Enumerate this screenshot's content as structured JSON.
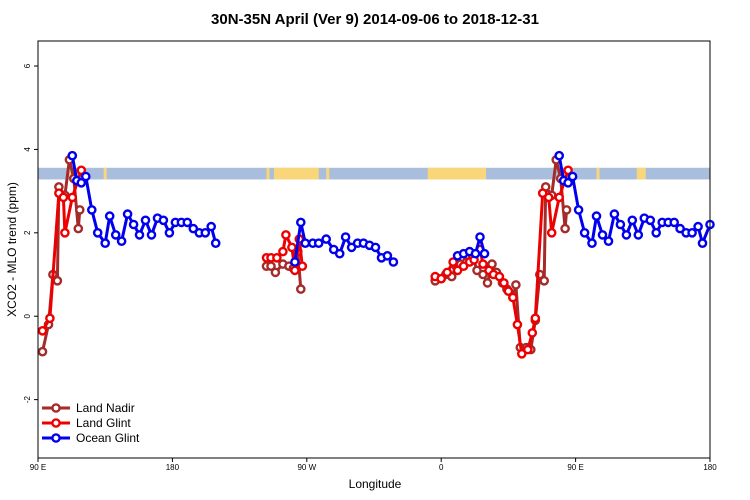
{
  "chart_data": {
    "type": "line",
    "title": "30N-35N April (Ver 9)   2014-09-06 to 2018-12-31",
    "xlabel": "Longitude",
    "ylabel": "XCO2 - MLO trend (ppm)",
    "xlim": [
      90,
      540
    ],
    "ylim": [
      -3.4,
      6.6
    ],
    "x_ticks": [
      {
        "value": 90,
        "label": "90 E"
      },
      {
        "value": 180,
        "label": "180"
      },
      {
        "value": 270,
        "label": "90 W"
      },
      {
        "value": 360,
        "label": "0"
      },
      {
        "value": 450,
        "label": "90 E"
      },
      {
        "value": 540,
        "label": "180"
      }
    ],
    "y_ticks": [
      {
        "value": -2,
        "label": "-2"
      },
      {
        "value": 0,
        "label": "0"
      },
      {
        "value": 2,
        "label": "2"
      },
      {
        "value": 4,
        "label": "4"
      },
      {
        "value": 6,
        "label": "6"
      }
    ],
    "band": {
      "y0": 3.28,
      "y1": 3.56,
      "ocean_color": "#a9bedc",
      "land_color": "#fad67a",
      "land_segments": [
        [
          111,
          113
        ],
        [
          134,
          136
        ],
        [
          243,
          245
        ],
        [
          248,
          278
        ],
        [
          283,
          285
        ],
        [
          351,
          390
        ],
        [
          464,
          466
        ],
        [
          491,
          497
        ]
      ]
    },
    "legend": {
      "position": "bottom-left",
      "entries": [
        "Land Nadir",
        "Land Glint",
        "Ocean Glint"
      ]
    },
    "series": [
      {
        "name": "Land Nadir",
        "color": "#a52a2a",
        "segments": [
          [
            [
              93,
              -0.85
            ],
            [
              97,
              -0.2
            ],
            [
              100,
              1.0
            ],
            [
              103,
              0.85
            ],
            [
              104,
              3.1
            ],
            [
              108,
              2.9
            ],
            [
              111,
              3.75
            ],
            [
              114,
              3.3
            ],
            [
              117,
              2.1
            ],
            [
              118,
              2.55
            ]
          ],
          [
            [
              243,
              1.2
            ],
            [
              246,
              1.2
            ],
            [
              249,
              1.05
            ],
            [
              254,
              1.25
            ],
            [
              258,
              1.2
            ],
            [
              261,
              1.15
            ],
            [
              264,
              1.55
            ],
            [
              266,
              0.65
            ]
          ],
          [
            [
              356,
              0.85
            ],
            [
              360,
              0.9
            ],
            [
              363,
              1.0
            ],
            [
              367,
              0.95
            ],
            [
              370,
              1.2
            ],
            [
              373,
              1.25
            ],
            [
              377,
              1.3
            ],
            [
              381,
              1.45
            ],
            [
              384,
              1.1
            ],
            [
              388,
              1.0
            ],
            [
              391,
              0.8
            ],
            [
              394,
              1.25
            ],
            [
              397,
              1.05
            ],
            [
              401,
              0.8
            ],
            [
              404,
              0.65
            ],
            [
              408,
              0.45
            ],
            [
              410,
              0.75
            ],
            [
              413,
              -0.75
            ],
            [
              417,
              -0.75
            ],
            [
              420,
              -0.8
            ],
            [
              423,
              -0.1
            ],
            [
              426,
              1.0
            ],
            [
              429,
              0.85
            ],
            [
              430,
              3.1
            ],
            [
              434,
              2.9
            ],
            [
              437,
              3.75
            ],
            [
              440,
              3.3
            ],
            [
              443,
              2.1
            ],
            [
              444,
              2.55
            ]
          ]
        ]
      },
      {
        "name": "Land Glint",
        "color": "#ee0000",
        "segments": [
          [
            [
              93,
              -0.35
            ],
            [
              98,
              -0.05
            ],
            [
              104,
              2.95
            ],
            [
              107,
              2.85
            ],
            [
              108,
              2.0
            ],
            [
              113,
              2.85
            ],
            [
              119,
              3.5
            ]
          ],
          [
            [
              243,
              1.4
            ],
            [
              246,
              1.4
            ],
            [
              250,
              1.4
            ],
            [
              254,
              1.55
            ],
            [
              256,
              1.95
            ],
            [
              260,
              1.65
            ],
            [
              262,
              1.1
            ],
            [
              265,
              1.85
            ],
            [
              267,
              1.2
            ]
          ],
          [
            [
              356,
              0.95
            ],
            [
              360,
              0.9
            ],
            [
              364,
              1.05
            ],
            [
              368,
              1.3
            ],
            [
              371,
              1.1
            ],
            [
              375,
              1.2
            ],
            [
              379,
              1.3
            ],
            [
              382,
              1.35
            ],
            [
              386,
              1.6
            ],
            [
              388,
              1.25
            ],
            [
              392,
              1.1
            ],
            [
              395,
              1.0
            ],
            [
              399,
              0.95
            ],
            [
              402,
              0.8
            ],
            [
              405,
              0.6
            ],
            [
              408,
              0.45
            ],
            [
              411,
              -0.2
            ],
            [
              414,
              -0.9
            ],
            [
              418,
              -0.8
            ],
            [
              421,
              -0.4
            ],
            [
              423,
              -0.05
            ],
            [
              428,
              2.95
            ],
            [
              432,
              2.85
            ],
            [
              434,
              2.0
            ],
            [
              439,
              2.85
            ],
            [
              445,
              3.5
            ]
          ]
        ]
      },
      {
        "name": "Ocean Glint",
        "color": "#0000ee",
        "segments": [
          [
            [
              122,
              3.35
            ],
            [
              117,
              3.25
            ],
            [
              118,
              3.2
            ],
            [
              120,
              3.35
            ],
            [
              125,
              2.55
            ],
            [
              129,
              2.0
            ],
            [
              134,
              2.4
            ],
            [
              136,
              1.95
            ],
            [
              140,
              1.75
            ],
            [
              144,
              2.45
            ],
            [
              147,
              2.2
            ],
            [
              150,
              1.95
            ],
            [
              153,
              2.3
            ],
            [
              156,
              1.95
            ],
            [
              159,
              2.35
            ],
            [
              162,
              2.3
            ],
            [
              165,
              2.0
            ],
            [
              168,
              2.25
            ],
            [
              172,
              2.25
            ],
            [
              176,
              2.25
            ],
            [
              180,
              2.1
            ],
            [
              184,
              2.0
            ],
            [
              188,
              2.0
            ],
            [
              191,
              2.15
            ],
            [
              193,
              1.75
            ]
          ]
        ]
      },
      {
        "name": "Ocean Glint",
        "color": "#0000ee",
        "segments": [
          [
            [
              113,
              3.85
            ],
            [
              116,
              3.25
            ],
            [
              119,
              3.2
            ],
            [
              122,
              3.35
            ],
            [
              126,
              2.55
            ],
            [
              130,
              2.0
            ],
            [
              135,
              1.75
            ],
            [
              138,
              2.4
            ],
            [
              142,
              1.95
            ],
            [
              146,
              1.8
            ],
            [
              150,
              2.45
            ],
            [
              154,
              2.2
            ],
            [
              158,
              1.95
            ],
            [
              162,
              2.3
            ],
            [
              166,
              1.95
            ],
            [
              170,
              2.35
            ],
            [
              174,
              2.3
            ],
            [
              178,
              2.0
            ],
            [
              182,
              2.25
            ],
            [
              186,
              2.25
            ],
            [
              190,
              2.25
            ],
            [
              194,
              2.1
            ],
            [
              198,
              2.0
            ],
            [
              202,
              2.0
            ],
            [
              206,
              2.15
            ],
            [
              209,
              1.75
            ]
          ],
          [
            [
              262,
              1.3
            ],
            [
              266,
              2.25
            ],
            [
              269,
              1.75
            ],
            [
              274,
              1.75
            ],
            [
              278,
              1.75
            ],
            [
              283,
              1.85
            ],
            [
              288,
              1.6
            ],
            [
              292,
              1.5
            ],
            [
              296,
              1.9
            ],
            [
              300,
              1.65
            ],
            [
              304,
              1.75
            ],
            [
              308,
              1.75
            ],
            [
              312,
              1.7
            ],
            [
              316,
              1.65
            ],
            [
              320,
              1.4
            ],
            [
              324,
              1.45
            ],
            [
              328,
              1.3
            ]
          ],
          [
            [
              371,
              1.45
            ],
            [
              375,
              1.5
            ],
            [
              379,
              1.55
            ],
            [
              383,
              1.5
            ],
            [
              386,
              1.9
            ],
            [
              389,
              1.5
            ]
          ],
          [
            [
              439,
              3.85
            ],
            [
              442,
              3.25
            ],
            [
              445,
              3.2
            ],
            [
              448,
              3.35
            ],
            [
              452,
              2.55
            ],
            [
              456,
              2.0
            ],
            [
              461,
              1.75
            ],
            [
              464,
              2.4
            ],
            [
              468,
              1.95
            ],
            [
              472,
              1.8
            ],
            [
              476,
              2.45
            ],
            [
              480,
              2.2
            ],
            [
              484,
              1.95
            ],
            [
              488,
              2.3
            ],
            [
              492,
              1.95
            ],
            [
              496,
              2.35
            ],
            [
              500,
              2.3
            ],
            [
              504,
              2.0
            ],
            [
              508,
              2.25
            ],
            [
              512,
              2.25
            ],
            [
              516,
              2.25
            ],
            [
              520,
              2.1
            ],
            [
              524,
              2.0
            ],
            [
              528,
              2.0
            ],
            [
              532,
              2.15
            ],
            [
              535,
              1.75
            ],
            [
              540,
              2.2
            ]
          ]
        ]
      }
    ]
  }
}
